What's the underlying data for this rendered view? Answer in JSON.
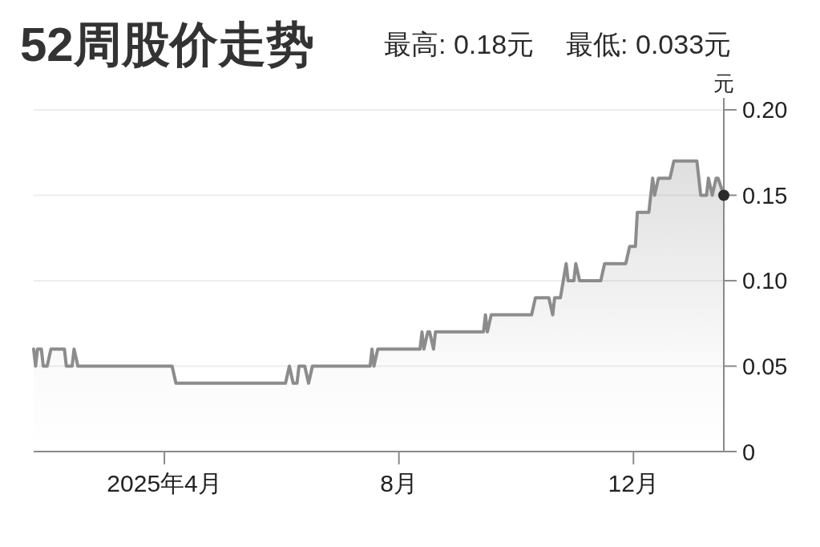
{
  "chart_data": {
    "type": "area",
    "title": "52周股价走势",
    "annotations": [
      "最高: 0.18元",
      "最低: 0.033元"
    ],
    "ylabel": "元",
    "xlim": [
      "2025-01-23",
      "2026-01-17"
    ],
    "ylim": [
      0,
      0.207
    ],
    "xticks": [
      {
        "value": "2025-04-01",
        "label": "2025年4月"
      },
      {
        "value": "2025-08-01",
        "label": "8月"
      },
      {
        "value": "2025-12-01",
        "label": "12月"
      }
    ],
    "yticks": [
      0,
      0.05,
      {
        "value": 0.1,
        "label": "0.10"
      },
      0.15,
      {
        "value": 0.2,
        "label": "0.20"
      }
    ],
    "grid": "y",
    "series": [
      {
        "color": "#8c8c8c",
        "x": [
          "2025-01-23",
          "2025-01-24",
          "2025-01-25",
          "2025-01-27",
          "2025-01-28",
          "2025-01-30",
          "2025-02-01",
          "2025-02-08",
          "2025-02-09",
          "2025-02-12",
          "2025-02-13",
          "2025-02-15",
          "2025-04-05",
          "2025-04-07",
          "2025-06-03",
          "2025-06-05",
          "2025-06-07",
          "2025-06-09",
          "2025-06-10",
          "2025-06-13",
          "2025-06-15",
          "2025-06-17",
          "2025-07-17",
          "2025-07-18",
          "2025-07-19",
          "2025-07-21",
          "2025-08-12",
          "2025-08-13",
          "2025-08-14",
          "2025-08-16",
          "2025-08-17",
          "2025-08-19",
          "2025-08-20",
          "2025-09-14",
          "2025-09-15",
          "2025-09-16",
          "2025-09-18",
          "2025-10-09",
          "2025-10-11",
          "2025-10-18",
          "2025-10-20",
          "2025-10-21",
          "2025-10-24",
          "2025-10-27",
          "2025-10-28",
          "2025-10-31",
          "2025-11-01",
          "2025-11-03",
          "2025-11-14",
          "2025-11-16",
          "2025-11-27",
          "2025-11-29",
          "2025-12-02",
          "2025-12-03",
          "2025-12-09",
          "2025-12-11",
          "2025-12-12",
          "2025-12-14",
          "2025-12-20",
          "2025-12-22",
          "2026-01-03",
          "2026-01-05",
          "2026-01-08",
          "2026-01-09",
          "2026-01-11",
          "2026-01-13",
          "2026-01-14",
          "2026-01-17"
        ],
        "values": [
          0.06,
          0.05,
          0.06,
          0.06,
          0.05,
          0.05,
          0.06,
          0.06,
          0.05,
          0.05,
          0.06,
          0.05,
          0.05,
          0.04,
          0.04,
          0.05,
          0.04,
          0.04,
          0.05,
          0.05,
          0.04,
          0.05,
          0.05,
          0.06,
          0.05,
          0.06,
          0.06,
          0.07,
          0.06,
          0.07,
          0.07,
          0.06,
          0.07,
          0.07,
          0.08,
          0.07,
          0.08,
          0.08,
          0.09,
          0.09,
          0.08,
          0.09,
          0.09,
          0.11,
          0.1,
          0.1,
          0.11,
          0.1,
          0.1,
          0.11,
          0.11,
          0.12,
          0.12,
          0.14,
          0.14,
          0.16,
          0.15,
          0.16,
          0.16,
          0.17,
          0.17,
          0.15,
          0.15,
          0.16,
          0.15,
          0.16,
          0.16,
          0.15
        ]
      },
      {
        "type": "scatter",
        "marker": "circle",
        "color": "#2b2b2b",
        "x": [
          "2026-01-17"
        ],
        "values": [
          0.15
        ]
      }
    ]
  }
}
